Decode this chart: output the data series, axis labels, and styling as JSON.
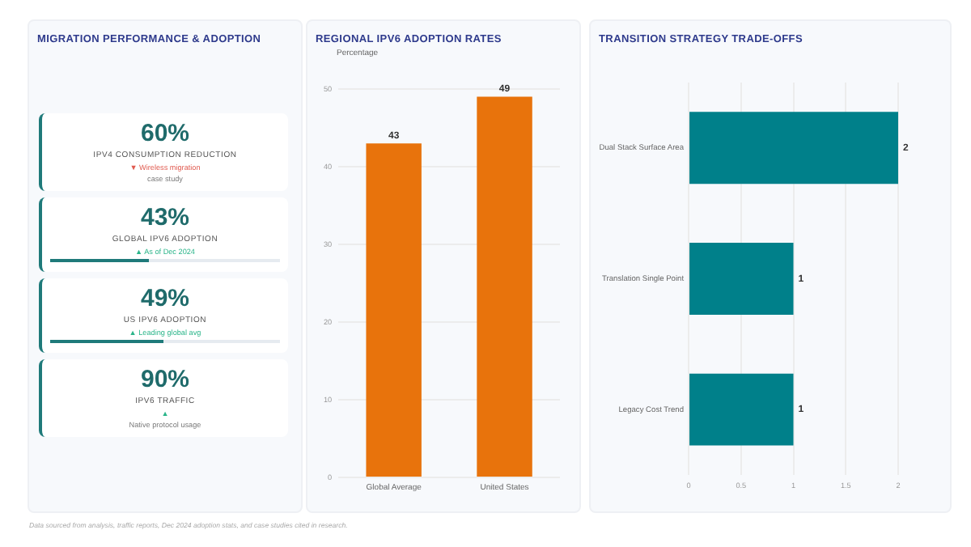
{
  "chart_data": [
    {
      "type": "other",
      "title": "MIGRATION PERFORMANCE & ADOPTION"
    },
    {
      "type": "other",
      "title": "IPV4 CONSUMPTION REDUCTION",
      "annotations": [
        "60%",
        "▼ Wireless migration",
        "case study"
      ]
    },
    {
      "type": "other",
      "title": "GLOBAL IPV6 ADOPTION",
      "annotations": [
        "43%",
        "▲ As of Dec 2024"
      ]
    },
    {
      "type": "other",
      "title": "US IPV6 ADOPTION",
      "annotations": [
        "49%",
        "▲ Leading global avg"
      ]
    },
    {
      "type": "other",
      "title": "IPV6 TRAFFIC",
      "annotations": [
        "90%",
        "▲",
        "Native protocol usage"
      ]
    },
    {
      "type": "bar",
      "title": "REGIONAL IPV6 ADOPTION RATES",
      "ylabel": "Percentage",
      "categories": [
        "Global Average",
        "United States"
      ],
      "values": [
        43,
        49
      ],
      "color": "#e8730c",
      "ylim": [
        0,
        50
      ],
      "yticks": [
        0,
        10,
        20,
        30,
        40,
        50
      ],
      "grid": "y",
      "data_labels": true
    },
    {
      "type": "bar",
      "orientation": "horizontal",
      "title": "TRANSITION STRATEGY TRADE-OFFS",
      "categories": [
        "Dual Stack Surface Area",
        "Translation Single Point",
        "Legacy Cost Trend"
      ],
      "values": [
        2,
        1,
        1
      ],
      "color": "#00808a",
      "xlim": [
        0,
        2
      ],
      "xticks": [
        0,
        0.5,
        1,
        1.5,
        2
      ],
      "grid": "x",
      "data_labels": true,
      "annotations": [
        "Data sourced from analysis, traffic reports, Dec 2024 adoption stats, and case studies cited in research."
      ]
    }
  ]
}
